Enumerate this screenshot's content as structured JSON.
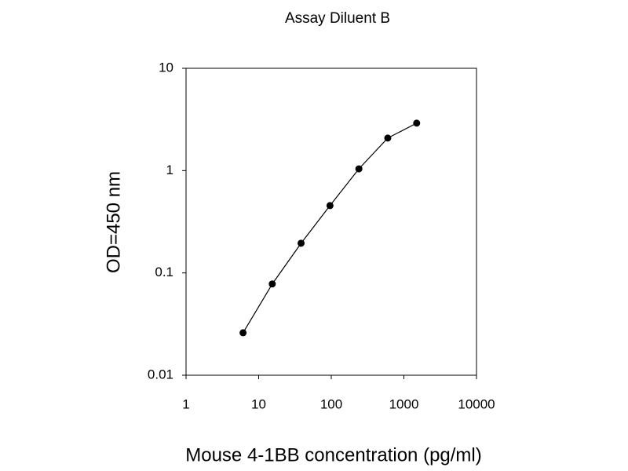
{
  "chart_data": {
    "type": "line",
    "title": "Assay Diluent B",
    "x_label": "Mouse 4-1BB concentration (pg/ml)",
    "y_label": "OD=450 nm",
    "x": [
      6.1,
      15.4,
      38.4,
      96,
      240,
      600,
      1500
    ],
    "series": [
      {
        "color": "#000000",
        "values": [
          0.026,
          0.078,
          0.195,
          0.455,
          1.04,
          2.08,
          2.91
        ]
      }
    ],
    "xscale": "log",
    "yscale": "log",
    "xlim": [
      1,
      10000
    ],
    "ylim": [
      0.01,
      10
    ],
    "xticks": [
      1,
      10,
      100,
      1000,
      10000
    ],
    "yticks": [
      0.01,
      0.1,
      1,
      10
    ],
    "grid": false,
    "markers": true
  }
}
